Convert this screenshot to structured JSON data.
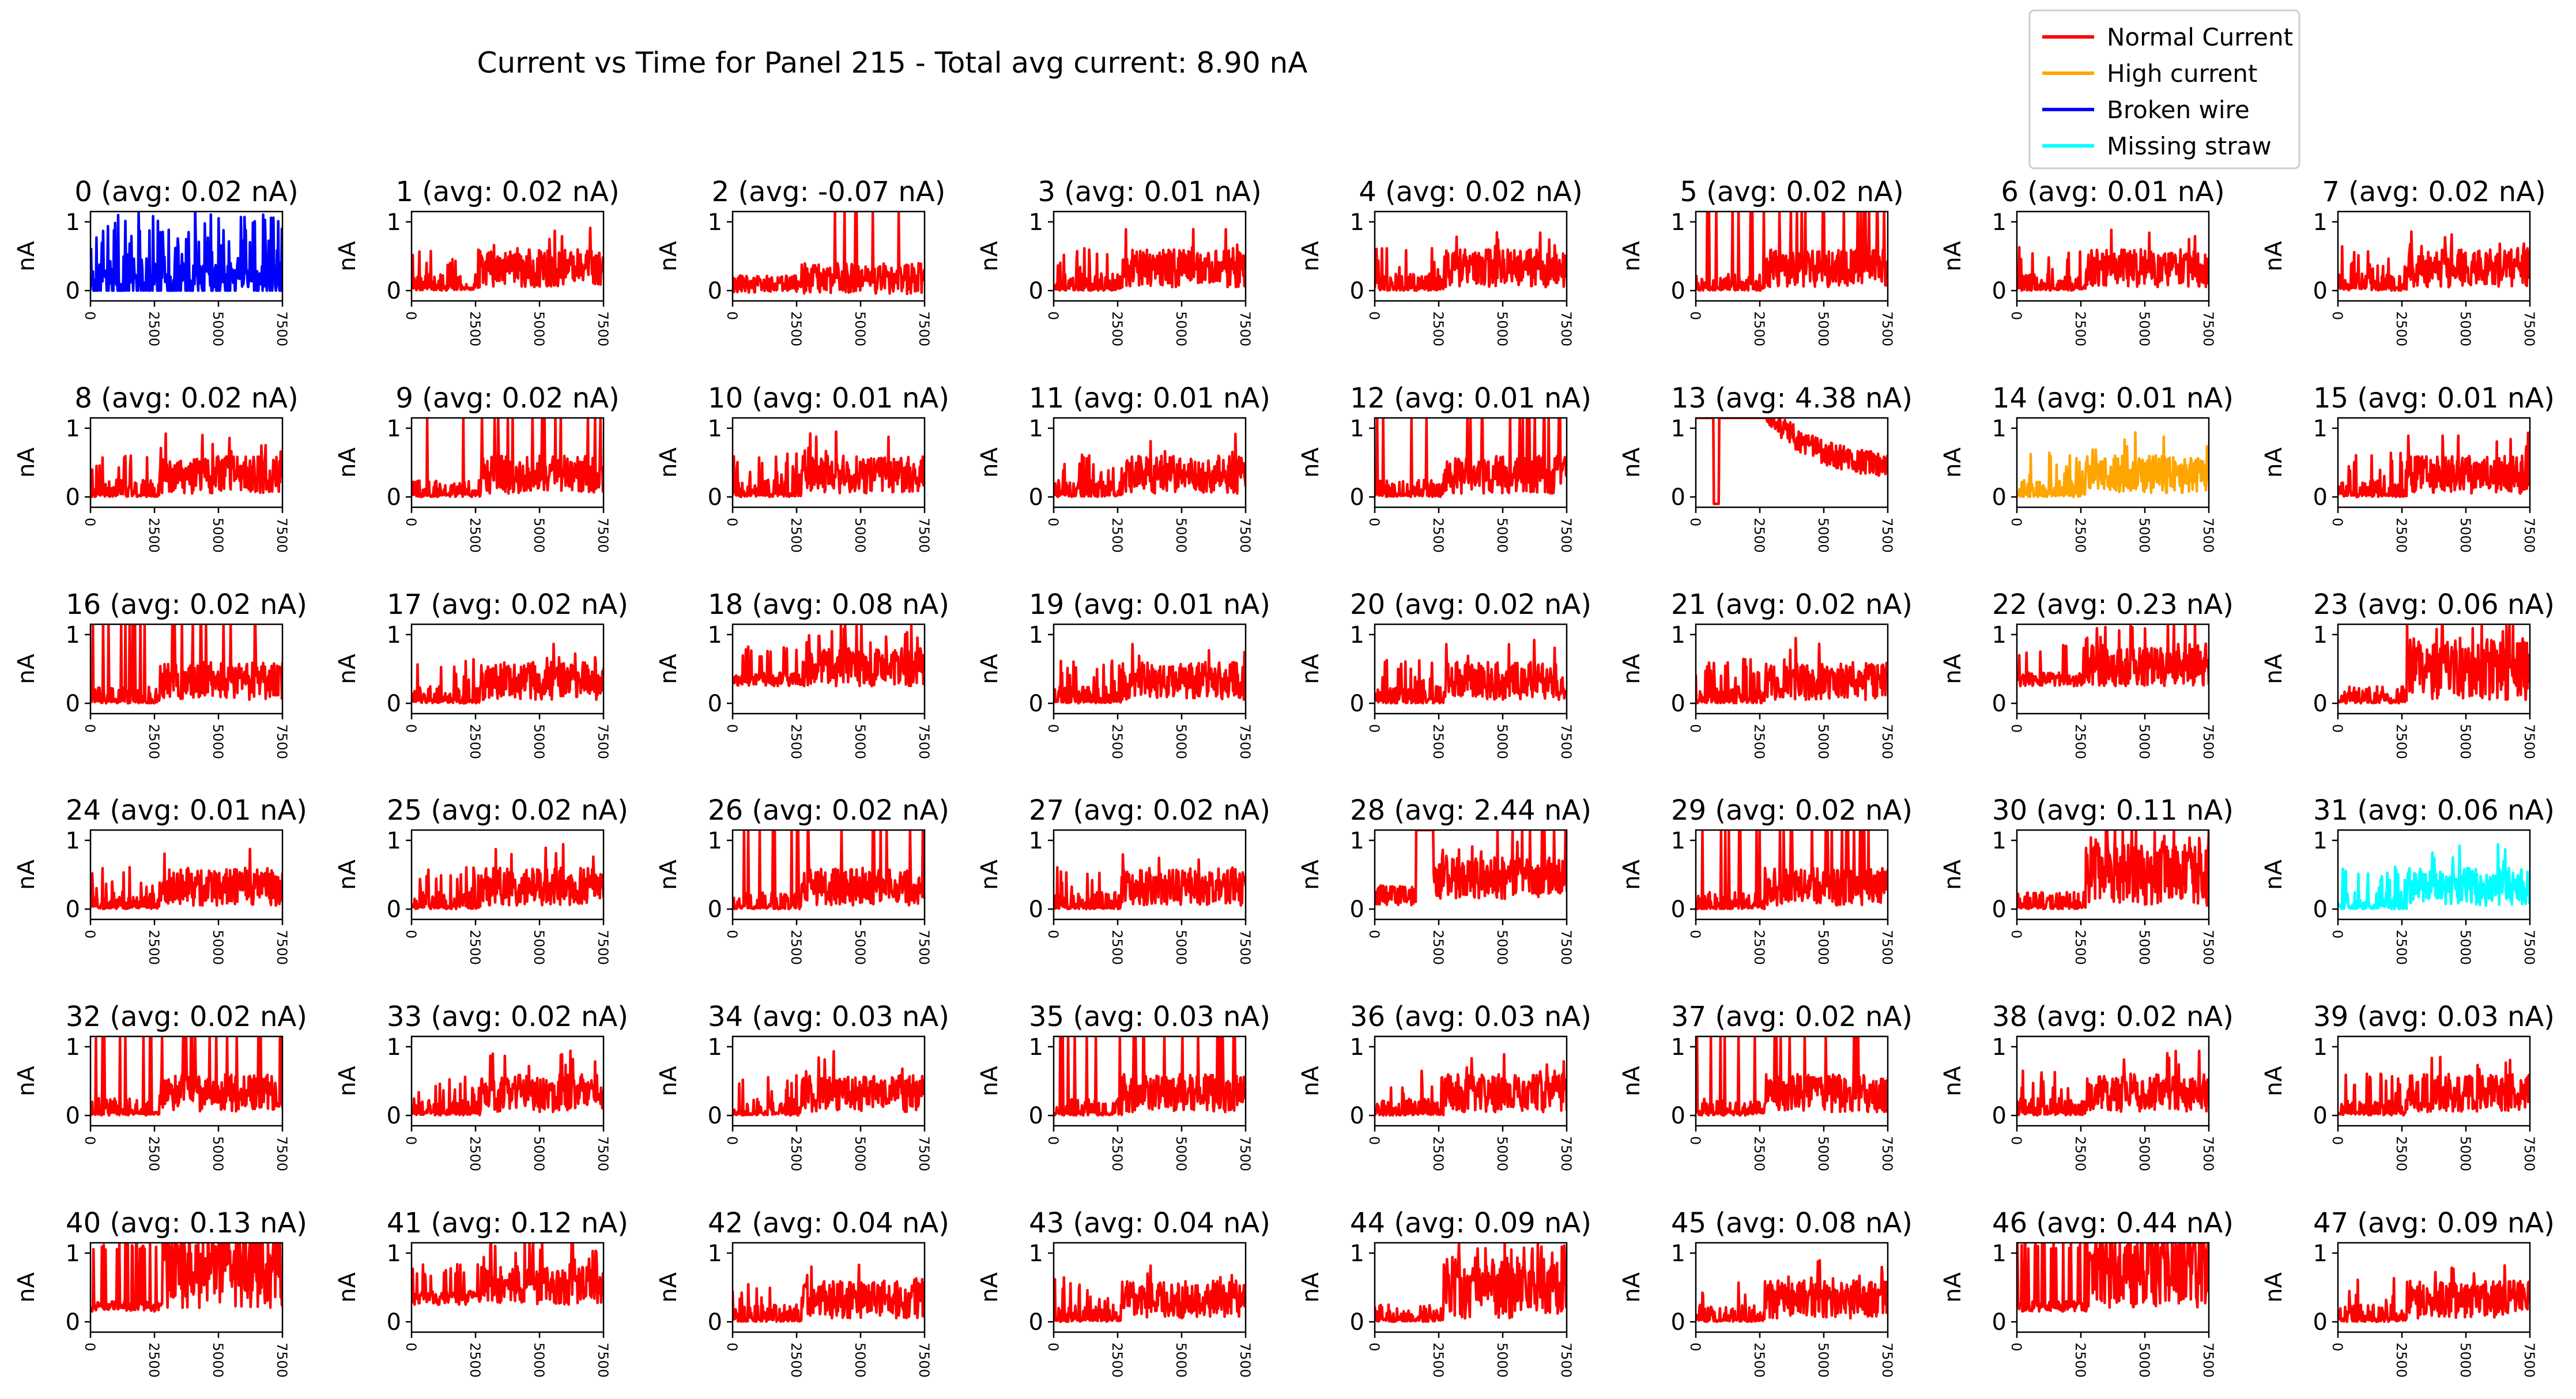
{
  "figure": {
    "title": "Current vs Time for Panel 215 - Total avg current: 8.90 nA"
  },
  "legend": {
    "placement": "top-right",
    "items": [
      {
        "label": "Normal Current",
        "color": "#ff0000"
      },
      {
        "label": "High current",
        "color": "#ffa500"
      },
      {
        "label": "Broken wire",
        "color": "#0000ff"
      },
      {
        "label": "Missing straw",
        "color": "#00ffff"
      }
    ]
  },
  "chart_data": {
    "type": "line",
    "layout": "small-multiples grid, 6 rows x 8 columns",
    "xlim": [
      0,
      7500
    ],
    "ylim": [
      -0.15,
      1.15
    ],
    "xticks": [
      "0",
      "2500",
      "5000",
      "7500"
    ],
    "yticks": [
      "0",
      "1"
    ],
    "ylabel": "nA",
    "xlabel": "",
    "grid": false,
    "series_status_colors": {
      "normal": "#ff0000",
      "high": "#ffa500",
      "broken": "#0000ff",
      "missing": "#00ffff"
    },
    "panels": [
      {
        "label": "0 (avg: 0.02 nA)",
        "avg": 0.02,
        "status": "broken",
        "profile": "broken"
      },
      {
        "label": "1 (avg: 0.02 nA)",
        "avg": 0.02,
        "status": "normal",
        "profile": "normal"
      },
      {
        "label": "2 (avg: -0.07 nA)",
        "avg": -0.07,
        "status": "normal",
        "profile": "low"
      },
      {
        "label": "3 (avg: 0.01 nA)",
        "avg": 0.01,
        "status": "normal",
        "profile": "normal"
      },
      {
        "label": "4 (avg: 0.02 nA)",
        "avg": 0.02,
        "status": "normal",
        "profile": "normal"
      },
      {
        "label": "5 (avg: 0.02 nA)",
        "avg": 0.02,
        "status": "normal",
        "profile": "spiky"
      },
      {
        "label": "6 (avg: 0.01 nA)",
        "avg": 0.01,
        "status": "normal",
        "profile": "normal"
      },
      {
        "label": "7 (avg: 0.02 nA)",
        "avg": 0.02,
        "status": "normal",
        "profile": "normal"
      },
      {
        "label": "8 (avg: 0.02 nA)",
        "avg": 0.02,
        "status": "normal",
        "profile": "normal"
      },
      {
        "label": "9 (avg: 0.02 nA)",
        "avg": 0.02,
        "status": "normal",
        "profile": "spiky"
      },
      {
        "label": "10 (avg: 0.01 nA)",
        "avg": 0.01,
        "status": "normal",
        "profile": "normal"
      },
      {
        "label": "11 (avg: 0.01 nA)",
        "avg": 0.01,
        "status": "normal",
        "profile": "normal"
      },
      {
        "label": "12 (avg: 0.01 nA)",
        "avg": 0.01,
        "status": "normal",
        "profile": "spiky"
      },
      {
        "label": "13 (avg: 4.38 nA)",
        "avg": 4.38,
        "status": "normal",
        "profile": "decay"
      },
      {
        "label": "14 (avg: 0.01 nA)",
        "avg": 0.01,
        "status": "high",
        "profile": "normal"
      },
      {
        "label": "15 (avg: 0.01 nA)",
        "avg": 0.01,
        "status": "normal",
        "profile": "normal"
      },
      {
        "label": "16 (avg: 0.02 nA)",
        "avg": 0.02,
        "status": "normal",
        "profile": "spiky"
      },
      {
        "label": "17 (avg: 0.02 nA)",
        "avg": 0.02,
        "status": "normal",
        "profile": "normal"
      },
      {
        "label": "18 (avg: 0.08 nA)",
        "avg": 0.08,
        "status": "normal",
        "profile": "elevated"
      },
      {
        "label": "19 (avg: 0.01 nA)",
        "avg": 0.01,
        "status": "normal",
        "profile": "normal"
      },
      {
        "label": "20 (avg: 0.02 nA)",
        "avg": 0.02,
        "status": "normal",
        "profile": "normal"
      },
      {
        "label": "21 (avg: 0.02 nA)",
        "avg": 0.02,
        "status": "normal",
        "profile": "normal"
      },
      {
        "label": "22 (avg: 0.23 nA)",
        "avg": 0.23,
        "status": "normal",
        "profile": "elevated"
      },
      {
        "label": "23 (avg: 0.06 nA)",
        "avg": 0.06,
        "status": "normal",
        "profile": "dense"
      },
      {
        "label": "24 (avg: 0.01 nA)",
        "avg": 0.01,
        "status": "normal",
        "profile": "normal"
      },
      {
        "label": "25 (avg: 0.02 nA)",
        "avg": 0.02,
        "status": "normal",
        "profile": "normal"
      },
      {
        "label": "26 (avg: 0.02 nA)",
        "avg": 0.02,
        "status": "normal",
        "profile": "spiky"
      },
      {
        "label": "27 (avg: 0.02 nA)",
        "avg": 0.02,
        "status": "normal",
        "profile": "normal"
      },
      {
        "label": "28 (avg: 2.44 nA)",
        "avg": 2.44,
        "status": "normal",
        "profile": "hot"
      },
      {
        "label": "29 (avg: 0.02 nA)",
        "avg": 0.02,
        "status": "normal",
        "profile": "spiky"
      },
      {
        "label": "30 (avg: 0.11 nA)",
        "avg": 0.11,
        "status": "normal",
        "profile": "dense"
      },
      {
        "label": "31 (avg: 0.06 nA)",
        "avg": 0.06,
        "status": "missing",
        "profile": "normal"
      },
      {
        "label": "32 (avg: 0.02 nA)",
        "avg": 0.02,
        "status": "normal",
        "profile": "spiky"
      },
      {
        "label": "33 (avg: 0.02 nA)",
        "avg": 0.02,
        "status": "normal",
        "profile": "normal"
      },
      {
        "label": "34 (avg: 0.03 nA)",
        "avg": 0.03,
        "status": "normal",
        "profile": "normal"
      },
      {
        "label": "35 (avg: 0.03 nA)",
        "avg": 0.03,
        "status": "normal",
        "profile": "spiky"
      },
      {
        "label": "36 (avg: 0.03 nA)",
        "avg": 0.03,
        "status": "normal",
        "profile": "normal"
      },
      {
        "label": "37 (avg: 0.02 nA)",
        "avg": 0.02,
        "status": "normal",
        "profile": "spiky"
      },
      {
        "label": "38 (avg: 0.02 nA)",
        "avg": 0.02,
        "status": "normal",
        "profile": "normal"
      },
      {
        "label": "39 (avg: 0.03 nA)",
        "avg": 0.03,
        "status": "normal",
        "profile": "normal"
      },
      {
        "label": "40 (avg: 0.13 nA)",
        "avg": 0.13,
        "status": "normal",
        "profile": "saturated"
      },
      {
        "label": "41 (avg: 0.12 nA)",
        "avg": 0.12,
        "status": "normal",
        "profile": "elevated"
      },
      {
        "label": "42 (avg: 0.04 nA)",
        "avg": 0.04,
        "status": "normal",
        "profile": "normal"
      },
      {
        "label": "43 (avg: 0.04 nA)",
        "avg": 0.04,
        "status": "normal",
        "profile": "normal"
      },
      {
        "label": "44 (avg: 0.09 nA)",
        "avg": 0.09,
        "status": "normal",
        "profile": "dense"
      },
      {
        "label": "45 (avg: 0.08 nA)",
        "avg": 0.08,
        "status": "normal",
        "profile": "normal"
      },
      {
        "label": "46 (avg: 0.44 nA)",
        "avg": 0.44,
        "status": "normal",
        "profile": "saturated"
      },
      {
        "label": "47 (avg: 0.09 nA)",
        "avg": 0.09,
        "status": "normal",
        "profile": "normal"
      }
    ]
  }
}
